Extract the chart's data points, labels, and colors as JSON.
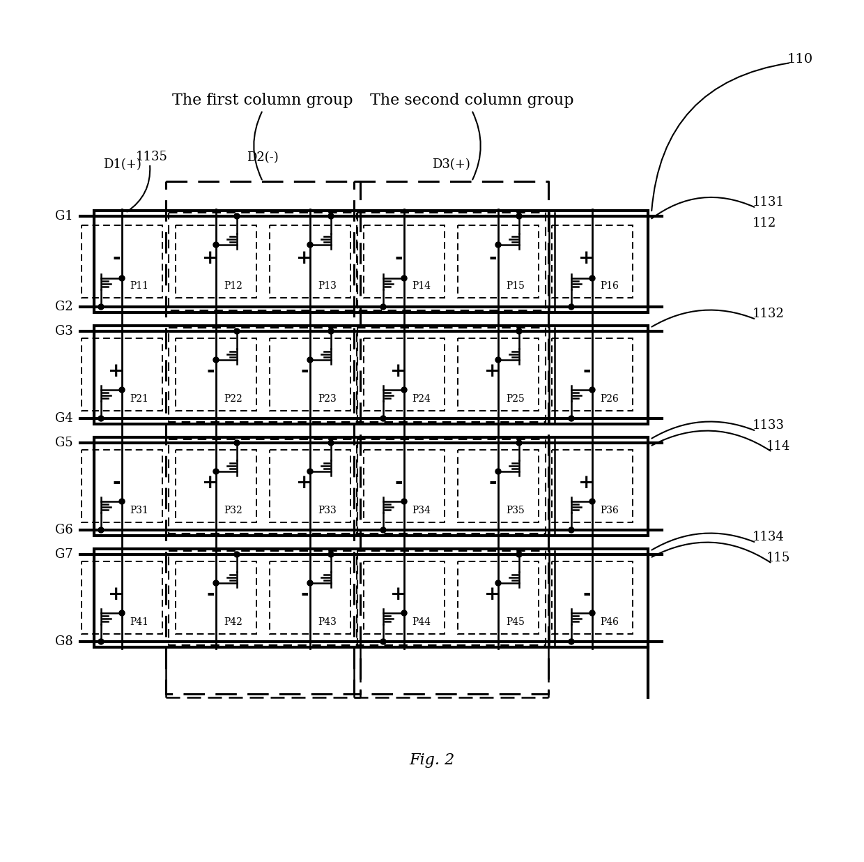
{
  "background_color": "#ffffff",
  "pixels": [
    {
      "id": "P11",
      "row": 1,
      "col": 1,
      "sign": "-"
    },
    {
      "id": "P12",
      "row": 1,
      "col": 2,
      "sign": "+"
    },
    {
      "id": "P13",
      "row": 1,
      "col": 3,
      "sign": "+"
    },
    {
      "id": "P14",
      "row": 1,
      "col": 4,
      "sign": "-"
    },
    {
      "id": "P15",
      "row": 1,
      "col": 5,
      "sign": "-"
    },
    {
      "id": "P16",
      "row": 1,
      "col": 6,
      "sign": "+"
    },
    {
      "id": "P21",
      "row": 2,
      "col": 1,
      "sign": "+"
    },
    {
      "id": "P22",
      "row": 2,
      "col": 2,
      "sign": "-"
    },
    {
      "id": "P23",
      "row": 2,
      "col": 3,
      "sign": "-"
    },
    {
      "id": "P24",
      "row": 2,
      "col": 4,
      "sign": "+"
    },
    {
      "id": "P25",
      "row": 2,
      "col": 5,
      "sign": "+"
    },
    {
      "id": "P26",
      "row": 2,
      "col": 6,
      "sign": "-"
    },
    {
      "id": "P31",
      "row": 3,
      "col": 1,
      "sign": "-"
    },
    {
      "id": "P32",
      "row": 3,
      "col": 2,
      "sign": "+"
    },
    {
      "id": "P33",
      "row": 3,
      "col": 3,
      "sign": "+"
    },
    {
      "id": "P34",
      "row": 3,
      "col": 4,
      "sign": "-"
    },
    {
      "id": "P35",
      "row": 3,
      "col": 5,
      "sign": "-"
    },
    {
      "id": "P36",
      "row": 3,
      "col": 6,
      "sign": "+"
    },
    {
      "id": "P41",
      "row": 4,
      "col": 1,
      "sign": "+"
    },
    {
      "id": "P42",
      "row": 4,
      "col": 2,
      "sign": "-"
    },
    {
      "id": "P43",
      "row": 4,
      "col": 3,
      "sign": "-"
    },
    {
      "id": "P44",
      "row": 4,
      "col": 4,
      "sign": "+"
    },
    {
      "id": "P45",
      "row": 4,
      "col": 5,
      "sign": "+"
    },
    {
      "id": "P46",
      "row": 4,
      "col": 6,
      "sign": "-"
    }
  ],
  "gate_lines": [
    "G1",
    "G2",
    "G3",
    "G4",
    "G5",
    "G6",
    "G7",
    "G8"
  ],
  "col_labels": [
    "D1(+)",
    "D2(-)",
    "D3(+)"
  ],
  "col_group_labels": [
    "The first column group",
    "The second column group"
  ],
  "ref_110": "110",
  "ref_1135": "1135",
  "ref_1131": "1131",
  "ref_1132": "1132",
  "ref_1133": "1133",
  "ref_1134": "1134",
  "ref_112": "112",
  "ref_114": "114",
  "ref_115": "115",
  "fig_label": "Fig. 2"
}
